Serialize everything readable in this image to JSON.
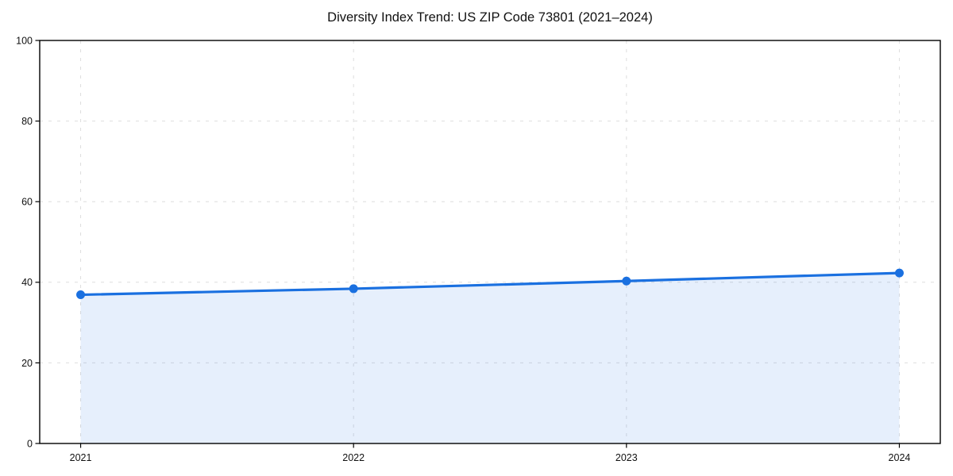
{
  "chart_data": {
    "type": "area",
    "title": "Diversity Index Trend: US ZIP Code 73801 (2021–2024)",
    "xlabel": "",
    "ylabel": "",
    "x": [
      2021,
      2022,
      2023,
      2024
    ],
    "categories": [
      "2021",
      "2022",
      "2023",
      "2024"
    ],
    "series": [
      {
        "name": "Diversity Index",
        "values": [
          36.9,
          38.4,
          40.3,
          42.3
        ]
      }
    ],
    "ylim": [
      0,
      100
    ],
    "xlim": [
      2020.85,
      2024.15
    ],
    "yticks": [
      0,
      20,
      40,
      60,
      80,
      100
    ],
    "grid": true,
    "grid_style": "dashed",
    "legend": false,
    "colors": {
      "line": "#1a70e0",
      "marker": "#1a70e0",
      "fill": "rgba(26,112,224,0.11)",
      "grid": "#dedede",
      "spine": "#000000",
      "tick_text": "#111111"
    }
  }
}
